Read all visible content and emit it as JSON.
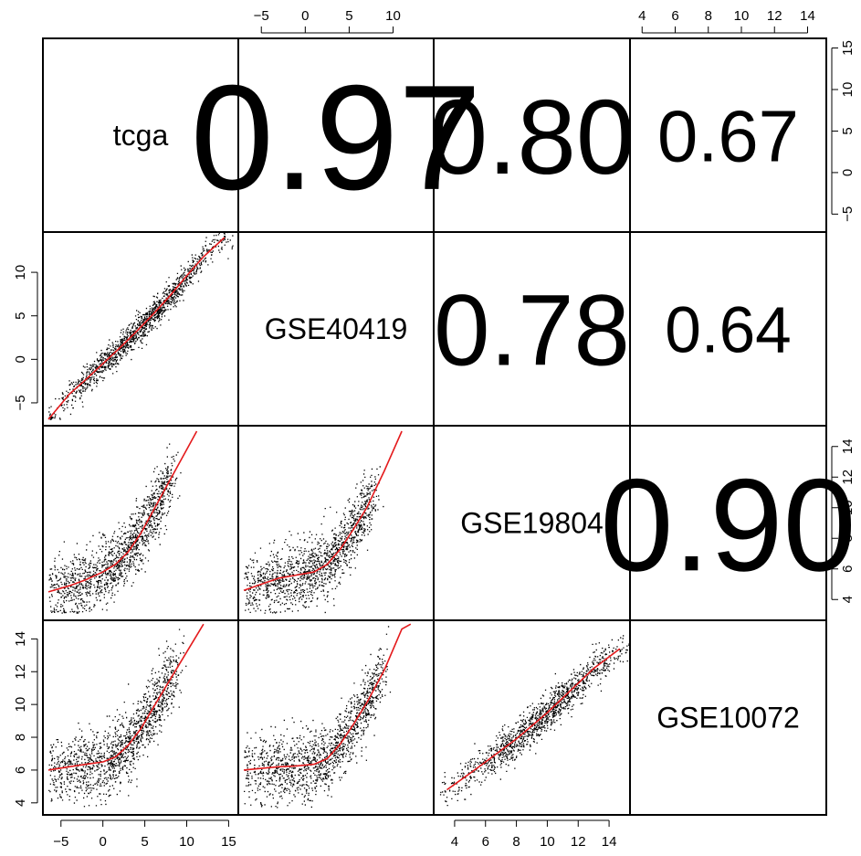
{
  "chart_data": {
    "type": "scatter",
    "variables": [
      "tcga",
      "GSE40419",
      "GSE19804",
      "GSE10072"
    ],
    "correlations": [
      {
        "row": 0,
        "col": 1,
        "text": "0.97",
        "value": 0.97
      },
      {
        "row": 0,
        "col": 2,
        "text": "0.80",
        "value": 0.8
      },
      {
        "row": 0,
        "col": 3,
        "text": "0.67",
        "value": 0.67
      },
      {
        "row": 1,
        "col": 2,
        "text": "0.78",
        "value": 0.78
      },
      {
        "row": 1,
        "col": 3,
        "text": "0.64",
        "value": 0.64
      },
      {
        "row": 2,
        "col": 3,
        "text": "0.90",
        "value": 0.9
      }
    ],
    "axes": {
      "tcga": {
        "range": [
          -6.5,
          15.5
        ],
        "ticks": [
          -5,
          0,
          5,
          10,
          15
        ],
        "tick_labels": [
          "−5",
          "0",
          "5",
          "10",
          "15"
        ]
      },
      "GSE40419": {
        "range": [
          -7,
          14
        ],
        "ticks": [
          -5,
          0,
          5,
          10
        ],
        "tick_labels": [
          "−5",
          "0",
          "5",
          "10"
        ]
      },
      "GSE19804": {
        "range": [
          3,
          15
        ],
        "ticks": [
          4,
          6,
          8,
          10,
          12,
          14
        ],
        "tick_labels": [
          "4",
          "6",
          "8",
          "10",
          "12",
          "14"
        ]
      },
      "GSE10072": {
        "range": [
          3.6,
          14.8
        ],
        "ticks": [
          4,
          6,
          8,
          10,
          12,
          14
        ],
        "tick_labels": [
          "4",
          "6",
          "8",
          "10",
          "12",
          "14"
        ]
      }
    },
    "scatter_panels": [
      {
        "row": 1,
        "col": 0,
        "x": "tcga",
        "y": "GSE40419",
        "fit": [
          [
            -6.5,
            -6.9
          ],
          [
            -4,
            -4.0
          ],
          [
            -2,
            -2.3
          ],
          [
            0,
            -0.5
          ],
          [
            2,
            1.3
          ],
          [
            4,
            3.2
          ],
          [
            6,
            5.2
          ],
          [
            8,
            7.3
          ],
          [
            10,
            9.6
          ],
          [
            12,
            11.8
          ],
          [
            14.5,
            14.0
          ]
        ]
      },
      {
        "row": 2,
        "col": 0,
        "x": "tcga",
        "y": "GSE19804",
        "fit": [
          [
            -6.5,
            4.5
          ],
          [
            -4,
            4.9
          ],
          [
            -2,
            5.3
          ],
          [
            0,
            5.8
          ],
          [
            1.5,
            6.3
          ],
          [
            3,
            7.1
          ],
          [
            4.5,
            8.3
          ],
          [
            6,
            9.8
          ],
          [
            8,
            11.8
          ],
          [
            10,
            13.8
          ],
          [
            11.2,
            15.0
          ]
        ]
      },
      {
        "row": 2,
        "col": 1,
        "x": "GSE40419",
        "y": "GSE19804",
        "fit": [
          [
            -7,
            4.6
          ],
          [
            -5,
            5.0
          ],
          [
            -3,
            5.4
          ],
          [
            -1,
            5.6
          ],
          [
            1,
            5.8
          ],
          [
            2.5,
            6.3
          ],
          [
            4,
            7.3
          ],
          [
            5.5,
            8.6
          ],
          [
            7,
            10.0
          ],
          [
            9,
            12.4
          ],
          [
            11,
            15.0
          ]
        ]
      },
      {
        "row": 3,
        "col": 0,
        "x": "tcga",
        "y": "GSE10072",
        "fit": [
          [
            -6.5,
            6.0
          ],
          [
            -4,
            6.2
          ],
          [
            -2,
            6.35
          ],
          [
            0,
            6.5
          ],
          [
            1.5,
            6.8
          ],
          [
            3,
            7.5
          ],
          [
            4.5,
            8.5
          ],
          [
            6,
            9.8
          ],
          [
            8,
            11.5
          ],
          [
            10,
            13.2
          ],
          [
            12,
            14.9
          ]
        ]
      },
      {
        "row": 3,
        "col": 1,
        "x": "GSE40419",
        "y": "GSE10072",
        "fit": [
          [
            -7,
            6.0
          ],
          [
            -5,
            6.1
          ],
          [
            -3,
            6.2
          ],
          [
            -1,
            6.25
          ],
          [
            1,
            6.35
          ],
          [
            2.5,
            6.7
          ],
          [
            4,
            7.6
          ],
          [
            5.5,
            8.8
          ],
          [
            7,
            10.1
          ],
          [
            9,
            12.1
          ],
          [
            11,
            14.6
          ],
          [
            12,
            14.9
          ]
        ]
      },
      {
        "row": 3,
        "col": 2,
        "x": "GSE19804",
        "y": "GSE10072",
        "fit": [
          [
            3.5,
            4.8
          ],
          [
            5,
            5.8
          ],
          [
            6,
            6.5
          ],
          [
            7,
            7.2
          ],
          [
            8,
            7.9
          ],
          [
            9,
            8.7
          ],
          [
            10,
            9.5
          ],
          [
            11,
            10.4
          ],
          [
            12,
            11.3
          ],
          [
            13,
            12.2
          ],
          [
            14.7,
            13.4
          ]
        ]
      }
    ],
    "scatter_color": "#000000",
    "fit_color": "#e41a1c",
    "grid": false,
    "legend": "none"
  }
}
